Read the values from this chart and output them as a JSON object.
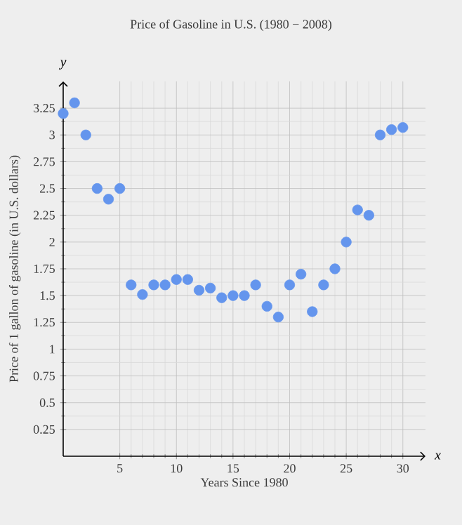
{
  "chart_data": {
    "type": "scatter",
    "title": "Price of Gasoline in U.S. (1980 − 2008)",
    "xlabel": "Years Since 1980",
    "ylabel": "Price of 1 gallon of gasoline (in U.S. dollars)",
    "annotations": [
      "x",
      "y"
    ],
    "x": [
      0,
      1,
      2,
      3,
      4,
      5,
      6,
      7,
      8,
      9,
      10,
      11,
      12,
      13,
      14,
      15,
      16,
      17,
      18,
      19,
      20,
      21,
      22,
      23,
      24,
      25,
      26,
      27,
      28,
      29,
      30
    ],
    "series": [
      {
        "color": "#6495ed",
        "values": [
          3.2,
          3.3,
          3.0,
          2.5,
          2.4,
          2.5,
          1.6,
          1.51,
          1.6,
          1.6,
          1.65,
          1.65,
          1.55,
          1.57,
          1.48,
          1.5,
          1.5,
          1.6,
          1.4,
          1.3,
          1.6,
          1.7,
          1.35,
          1.6,
          1.75,
          2.0,
          2.3,
          2.25,
          3.0,
          3.05,
          3.07
        ]
      }
    ],
    "xlim": [
      0,
      32
    ],
    "ylim": [
      0,
      3.5
    ],
    "xticks": [
      5,
      10,
      15,
      20,
      25,
      30
    ],
    "yticks": [
      0.25,
      0.5,
      0.75,
      1,
      1.25,
      1.5,
      1.75,
      2,
      2.25,
      2.5,
      2.75,
      3,
      3.25
    ],
    "grid": true,
    "marker": "circle"
  }
}
